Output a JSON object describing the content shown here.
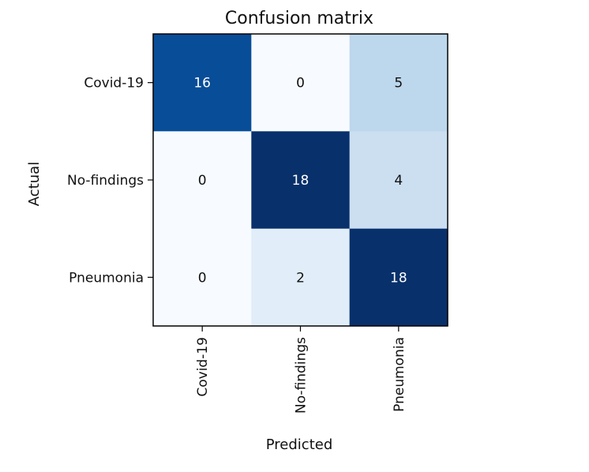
{
  "chart_data": {
    "type": "heatmap",
    "title": "Confusion matrix",
    "xlabel": "Predicted",
    "ylabel": "Actual",
    "x_categories": [
      "Covid-19",
      "No-findings",
      "Pneumonia"
    ],
    "y_categories": [
      "Covid-19",
      "No-findings",
      "Pneumonia"
    ],
    "values": [
      [
        16,
        0,
        5
      ],
      [
        0,
        18,
        4
      ],
      [
        0,
        2,
        18
      ]
    ],
    "colormap": "Blues",
    "color_range": [
      0,
      18
    ],
    "grid": false
  }
}
